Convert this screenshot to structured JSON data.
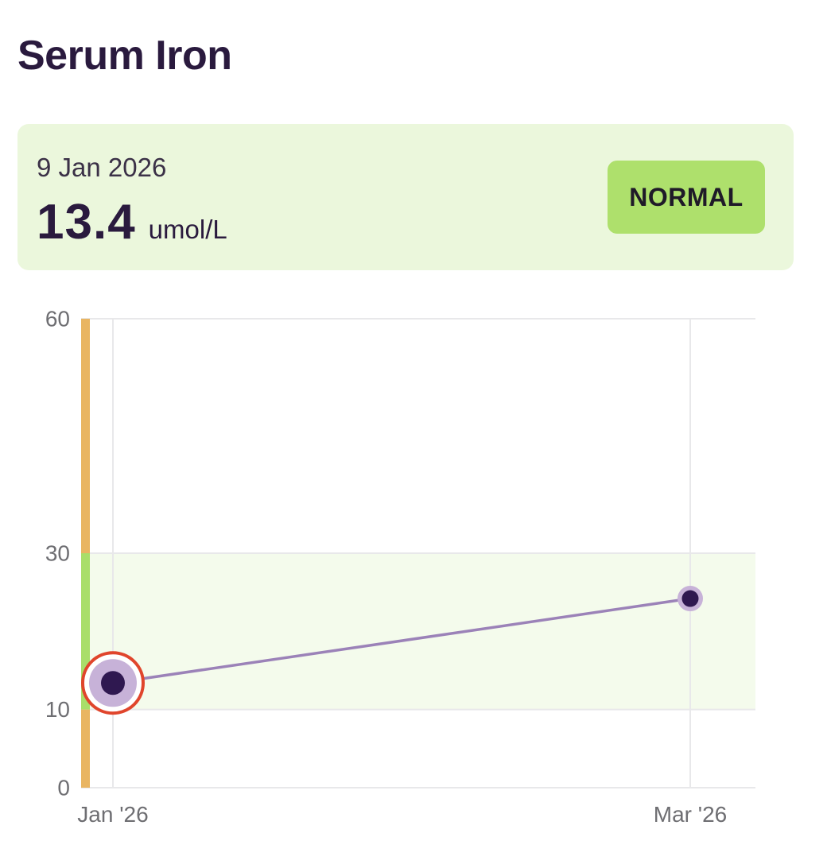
{
  "title": "Serum Iron",
  "latest_reading": {
    "date": "9 Jan 2026",
    "value": "13.4",
    "unit": "umol/L",
    "status": "NORMAL"
  },
  "colors": {
    "card_background": "#ebf7dc",
    "badge_background": "#aee06c",
    "normal_band": "#f4fbec",
    "normal_range_bar": "#a9de6a",
    "out_of_range_bar": "#e9b562",
    "line": "#9b82b8",
    "point_fill": "#2f1850",
    "point_halo": "#c7b2d8",
    "selected_ring": "#e0452c",
    "grid": "#e8e8ea"
  },
  "chart_data": {
    "type": "line",
    "ylim": [
      0,
      60
    ],
    "y_ticks": [
      "60",
      "30",
      "10",
      "0"
    ],
    "y_tick_values": [
      60,
      30,
      10,
      0
    ],
    "normal_range": [
      10,
      30
    ],
    "x_ticks": [
      "Jan '26",
      "Mar '26"
    ],
    "series": [
      {
        "points": [
          {
            "x": "2026-01-09",
            "y": 13.4,
            "selected": true
          },
          {
            "x": "2026-03-01",
            "y": 24.2,
            "selected": false
          }
        ]
      }
    ]
  }
}
